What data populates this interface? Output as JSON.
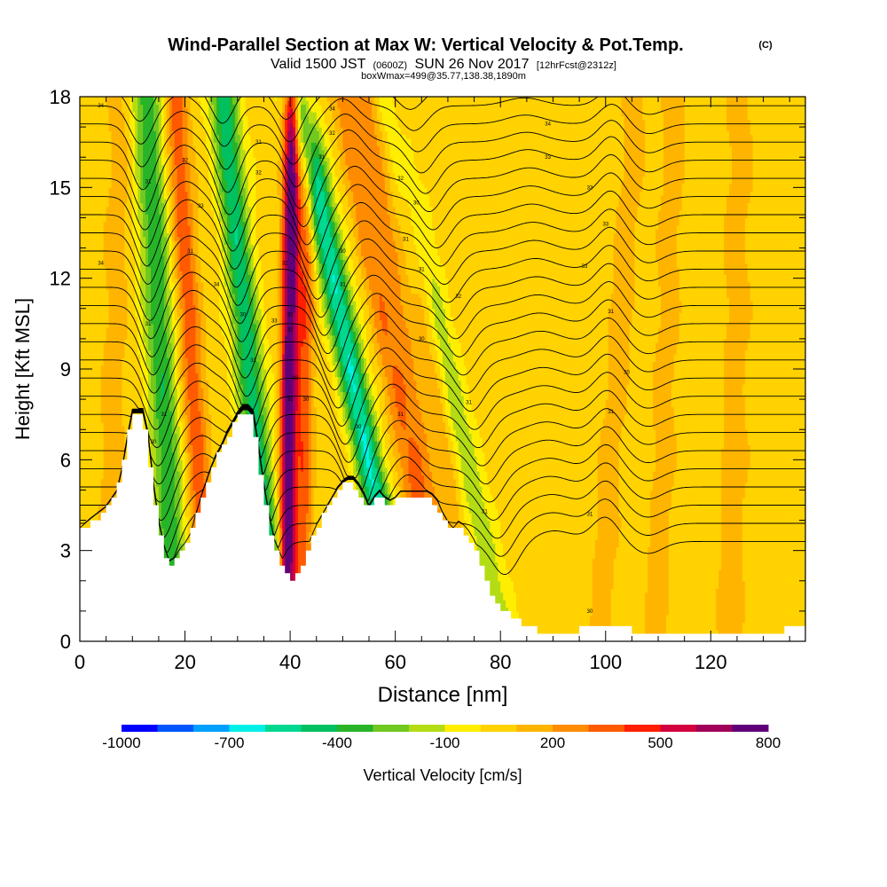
{
  "chart_data": {
    "type": "heatmap",
    "title": "Wind-Parallel Section at Max W: Vertical Velocity & Pot.Temp.",
    "copyright_mark": "(C)",
    "subtitle_parts": {
      "valid": "Valid 1500 JST",
      "zulu": "(0600Z)",
      "date": "SUN 26 Nov 2017",
      "forecast": "[12hrFcst@2312z]"
    },
    "subtitle2": "boxWmax=499@35.77,138.38,1890m",
    "xlabel": "Distance [nm]",
    "ylabel": "Height [Kft MSL]",
    "xlim": [
      0,
      138
    ],
    "ylim": [
      0,
      18
    ],
    "x_ticks": [
      "0",
      "20",
      "40",
      "60",
      "80",
      "100",
      "120"
    ],
    "y_ticks": [
      "0",
      "3",
      "6",
      "9",
      "12",
      "15",
      "18"
    ],
    "colorbar": {
      "label": "Vertical Velocity [cm/s]",
      "tick_labels": [
        "-1000",
        "-700",
        "-400",
        "-100",
        "200",
        "500",
        "800"
      ],
      "bounds": [
        -1000,
        -900,
        -800,
        -700,
        -600,
        -500,
        -400,
        -300,
        -200,
        -100,
        0,
        100,
        200,
        300,
        400,
        500,
        600,
        700,
        800
      ],
      "colors": [
        "#0000ff",
        "#0055ff",
        "#00a0ff",
        "#00f0e8",
        "#00d890",
        "#00c060",
        "#28b428",
        "#70c820",
        "#b4dc14",
        "#ffee00",
        "#ffd200",
        "#ffb400",
        "#ff8c00",
        "#ff5a00",
        "#ff1e00",
        "#d2003c",
        "#a0005a",
        "#600078"
      ]
    },
    "terrain_kft": [
      [
        0,
        3.6
      ],
      [
        2,
        3.9
      ],
      [
        5,
        4.3
      ],
      [
        7,
        4.8
      ],
      [
        8,
        5.5
      ],
      [
        9,
        6.5
      ],
      [
        10,
        7.4
      ],
      [
        12,
        7.4
      ],
      [
        13,
        6.6
      ],
      [
        14,
        5.0
      ],
      [
        15,
        3.8
      ],
      [
        16,
        3.0
      ],
      [
        17,
        2.5
      ],
      [
        18,
        2.6
      ],
      [
        19,
        2.9
      ],
      [
        20,
        3.1
      ],
      [
        21,
        3.4
      ],
      [
        22,
        4.0
      ],
      [
        23,
        4.6
      ],
      [
        24,
        5.1
      ],
      [
        25,
        5.6
      ],
      [
        26,
        6.0
      ],
      [
        27,
        6.3
      ],
      [
        28,
        6.7
      ],
      [
        29,
        7.0
      ],
      [
        30,
        7.3
      ],
      [
        31,
        7.5
      ],
      [
        32,
        7.5
      ],
      [
        33,
        7.3
      ],
      [
        34,
        6.2
      ],
      [
        35,
        5.0
      ],
      [
        36,
        4.0
      ],
      [
        37,
        3.2
      ],
      [
        38,
        2.8
      ],
      [
        39,
        2.4
      ],
      [
        40,
        2.0
      ],
      [
        41,
        2.0
      ],
      [
        42,
        2.3
      ],
      [
        43,
        2.8
      ],
      [
        44,
        3.3
      ],
      [
        45,
        3.7
      ],
      [
        46,
        4.0
      ],
      [
        47,
        4.3
      ],
      [
        48,
        4.6
      ],
      [
        49,
        4.9
      ],
      [
        50,
        5.1
      ],
      [
        51,
        5.2
      ],
      [
        52,
        5.2
      ],
      [
        53,
        5.0
      ],
      [
        54,
        4.7
      ],
      [
        55,
        4.3
      ],
      [
        56,
        4.6
      ],
      [
        57,
        4.8
      ],
      [
        58,
        4.6
      ],
      [
        59,
        4.5
      ],
      [
        60,
        4.6
      ],
      [
        61,
        4.8
      ],
      [
        62,
        4.8
      ],
      [
        63,
        4.8
      ],
      [
        64,
        4.8
      ],
      [
        65,
        4.8
      ],
      [
        66,
        4.8
      ],
      [
        67,
        4.7
      ],
      [
        68,
        4.5
      ],
      [
        69,
        4.1
      ],
      [
        70,
        3.8
      ],
      [
        71,
        3.6
      ],
      [
        72,
        3.8
      ],
      [
        73,
        3.7
      ],
      [
        74,
        3.5
      ],
      [
        75,
        3.2
      ],
      [
        76,
        2.8
      ],
      [
        77,
        2.3
      ],
      [
        78,
        1.7
      ],
      [
        79,
        1.3
      ],
      [
        80,
        1.1
      ],
      [
        82,
        0.9
      ],
      [
        84,
        0.6
      ],
      [
        86,
        0.4
      ],
      [
        88,
        0.3
      ],
      [
        90,
        0.3
      ],
      [
        92,
        0.25
      ],
      [
        94,
        0.3
      ],
      [
        96,
        0.45
      ],
      [
        98,
        0.6
      ],
      [
        100,
        0.55
      ],
      [
        102,
        0.45
      ],
      [
        104,
        0.4
      ],
      [
        106,
        0.3
      ],
      [
        110,
        0.3
      ],
      [
        115,
        0.28
      ],
      [
        120,
        0.25
      ],
      [
        125,
        0.3
      ],
      [
        130,
        0.35
      ],
      [
        135,
        0.38
      ],
      [
        138,
        0.4
      ]
    ],
    "w_features": [
      {
        "x0": 17,
        "h0": 4.5,
        "dxdh": -0.32,
        "w": 2.8,
        "amp": -420
      },
      {
        "x0": 23,
        "h0": 4.2,
        "dxdh": -0.35,
        "w": 2.2,
        "amp": 330
      },
      {
        "x0": 35,
        "h0": 4.0,
        "dxdh": -0.55,
        "w": 2.6,
        "amp": -520
      },
      {
        "x0": 39.5,
        "h0": 3.0,
        "dxdh": 0.06,
        "w": 1.5,
        "amp": 820
      },
      {
        "x0": 42.5,
        "h0": 3.0,
        "dxdh": 0.05,
        "w": 1.6,
        "amp": 330
      },
      {
        "x0": 56,
        "h0": 5.0,
        "dxdh": -1.1,
        "w": 2.6,
        "amp": -640
      },
      {
        "x0": 62,
        "h0": 6.0,
        "dxdh": -1.0,
        "w": 2.2,
        "amp": 220
      },
      {
        "x0": 66,
        "h0": 5.0,
        "dxdh": -0.9,
        "w": 2.4,
        "amp": 200
      },
      {
        "x0": 77,
        "h0": 3.0,
        "dxdh": -1.2,
        "w": 2.8,
        "amp": -200
      },
      {
        "x0": 72,
        "h0": 3.0,
        "dxdh": -0.8,
        "w": 2.0,
        "amp": 150
      },
      {
        "x0": 6,
        "h0": 6.0,
        "dxdh": 0.15,
        "w": 2.5,
        "amp": 110
      },
      {
        "x0": 99,
        "h0": 1.0,
        "dxdh": 0.4,
        "w": 2.5,
        "amp": 110
      },
      {
        "x0": 110,
        "h0": 2.0,
        "dxdh": 0.2,
        "w": 2.5,
        "amp": 110
      },
      {
        "x0": 124,
        "h0": 3.0,
        "dxdh": 0.1,
        "w": 3.0,
        "amp": 100
      }
    ],
    "theta_levels_kft": [
      3.3,
      3.9,
      4.5,
      5.1,
      5.7,
      6.3,
      6.9,
      7.5,
      8.1,
      8.7,
      9.3,
      9.9,
      10.5,
      11.1,
      11.7,
      12.3,
      12.9,
      13.5,
      14.1,
      14.7,
      15.3,
      15.9,
      16.5,
      17.1,
      17.7,
      18.3
    ],
    "theta_waves": [
      {
        "xc": 16,
        "dxdh": -0.32,
        "w": 3.0,
        "amp": -1.7
      },
      {
        "xc": 24,
        "dxdh": -0.35,
        "w": 3.2,
        "amp": 0.5
      },
      {
        "xc": 35,
        "dxdh": -0.55,
        "w": 3.0,
        "amp": -1.8
      },
      {
        "xc": 55,
        "dxdh": -1.1,
        "w": 3.0,
        "amp": -1.6
      },
      {
        "xc": 63,
        "dxdh": -1.0,
        "w": 4.0,
        "amp": 1.0
      },
      {
        "xc": 80,
        "dxdh": -1.2,
        "w": 3.5,
        "amp": -1.1
      },
      {
        "xc": 90,
        "dxdh": -0.4,
        "w": 5.0,
        "amp": 0.35
      },
      {
        "xc": 100,
        "dxdh": 0.1,
        "w": 3.5,
        "amp": 0.8
      },
      {
        "xc": 108,
        "dxdh": 0.0,
        "w": 4.0,
        "amp": -0.4
      }
    ],
    "theta_labels": [
      {
        "x": 4,
        "h": 17.7,
        "text": "34"
      },
      {
        "x": 13,
        "h": 15.2,
        "text": "31"
      },
      {
        "x": 20,
        "h": 15.9,
        "text": "32"
      },
      {
        "x": 23,
        "h": 14.4,
        "text": "33"
      },
      {
        "x": 21,
        "h": 12.9,
        "text": "31"
      },
      {
        "x": 26,
        "h": 11.8,
        "text": "34"
      },
      {
        "x": 4,
        "h": 12.5,
        "text": "34"
      },
      {
        "x": 13,
        "h": 10.5,
        "text": "31"
      },
      {
        "x": 16,
        "h": 7.5,
        "text": "31"
      },
      {
        "x": 14,
        "h": 6.6,
        "text": "30"
      },
      {
        "x": 34,
        "h": 16.5,
        "text": "31"
      },
      {
        "x": 34,
        "h": 15.5,
        "text": "32"
      },
      {
        "x": 31,
        "h": 10.8,
        "text": "30"
      },
      {
        "x": 33,
        "h": 9.3,
        "text": "31"
      },
      {
        "x": 37,
        "h": 10.6,
        "text": "33"
      },
      {
        "x": 39,
        "h": 12.5,
        "text": "32"
      },
      {
        "x": 40,
        "h": 10.8,
        "text": "32"
      },
      {
        "x": 40,
        "h": 10.3,
        "text": "32"
      },
      {
        "x": 41,
        "h": 8.7,
        "text": "33"
      },
      {
        "x": 40,
        "h": 8.0,
        "text": "31"
      },
      {
        "x": 43,
        "h": 8.0,
        "text": "30"
      },
      {
        "x": 46,
        "h": 16.0,
        "text": "31"
      },
      {
        "x": 48,
        "h": 17.6,
        "text": "34"
      },
      {
        "x": 48,
        "h": 16.8,
        "text": "32"
      },
      {
        "x": 50,
        "h": 12.9,
        "text": "30"
      },
      {
        "x": 50,
        "h": 11.8,
        "text": "31"
      },
      {
        "x": 53,
        "h": 7.1,
        "text": "30"
      },
      {
        "x": 61,
        "h": 15.3,
        "text": "32"
      },
      {
        "x": 64,
        "h": 14.5,
        "text": "30"
      },
      {
        "x": 62,
        "h": 13.3,
        "text": "31"
      },
      {
        "x": 65,
        "h": 12.3,
        "text": "31"
      },
      {
        "x": 72,
        "h": 11.4,
        "text": "32"
      },
      {
        "x": 65,
        "h": 10.0,
        "text": "30"
      },
      {
        "x": 61,
        "h": 7.5,
        "text": "31"
      },
      {
        "x": 74,
        "h": 7.9,
        "text": "31"
      },
      {
        "x": 77,
        "h": 4.3,
        "text": "31"
      },
      {
        "x": 89,
        "h": 17.1,
        "text": "34"
      },
      {
        "x": 89,
        "h": 16.0,
        "text": "33"
      },
      {
        "x": 97,
        "h": 15.0,
        "text": "33"
      },
      {
        "x": 100,
        "h": 13.8,
        "text": "33"
      },
      {
        "x": 96,
        "h": 12.4,
        "text": "33"
      },
      {
        "x": 101,
        "h": 10.9,
        "text": "31"
      },
      {
        "x": 104,
        "h": 8.9,
        "text": "30"
      },
      {
        "x": 101,
        "h": 7.6,
        "text": "31"
      },
      {
        "x": 97,
        "h": 4.2,
        "text": "31"
      },
      {
        "x": 97,
        "h": 1.0,
        "text": "30"
      }
    ]
  }
}
